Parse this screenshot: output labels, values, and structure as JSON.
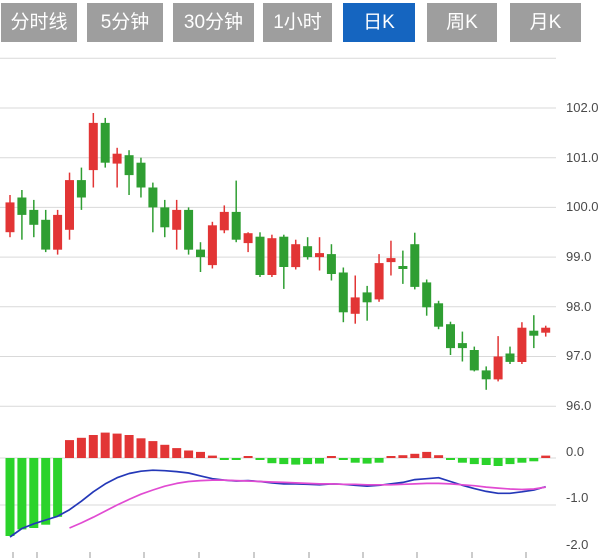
{
  "tabs": {
    "items": [
      {
        "label": "分时线",
        "active": false
      },
      {
        "label": "5分钟",
        "active": false
      },
      {
        "label": "30分钟",
        "active": false
      },
      {
        "label": "1小时",
        "active": false
      },
      {
        "label": "日K",
        "active": true
      },
      {
        "label": "周K",
        "active": false
      },
      {
        "label": "月K",
        "active": false
      }
    ]
  },
  "colors": {
    "tab_bg": "#9e9e9e",
    "tab_active_bg": "#1565c0",
    "tab_text": "#ffffff",
    "candle_up": "#e23535",
    "candle_down": "#2f9e32",
    "macd_bar_up": "#e23535",
    "macd_bar_down": "#2bd32b",
    "dif_line": "#2438b8",
    "dea_line": "#e14bd2",
    "gridline": "#d9d9d9",
    "axis_text": "#4a4a4a",
    "tick": "#999999"
  },
  "chart_data": {
    "type": "candlestick",
    "title": "日K (daily K-line) with MACD sub-chart",
    "legend_position": "none",
    "grid": "horizontal-only",
    "price_axis": {
      "labels": [
        "102.0",
        "101.0",
        "100.0",
        "99.0",
        "98.0",
        "97.0",
        "96.0"
      ],
      "values": [
        102.0,
        101.0,
        100.0,
        99.0,
        98.0,
        97.0,
        96.0
      ],
      "range_shown": [
        96.0,
        103.0
      ]
    },
    "candles_ohlc": [
      [
        99.5,
        100.25,
        99.4,
        100.1
      ],
      [
        100.2,
        100.35,
        99.35,
        99.85
      ],
      [
        99.95,
        100.15,
        99.4,
        99.65
      ],
      [
        99.75,
        99.95,
        99.1,
        99.15
      ],
      [
        99.15,
        99.95,
        99.05,
        99.85
      ],
      [
        99.55,
        100.7,
        99.35,
        100.55
      ],
      [
        100.55,
        100.8,
        99.95,
        100.2
      ],
      [
        100.75,
        101.9,
        100.4,
        101.7
      ],
      [
        101.7,
        101.8,
        100.8,
        100.9
      ],
      [
        100.88,
        101.2,
        100.4,
        101.08
      ],
      [
        101.05,
        101.15,
        100.25,
        100.65
      ],
      [
        100.9,
        101.0,
        100.2,
        100.4
      ],
      [
        100.4,
        100.5,
        99.5,
        100.0
      ],
      [
        100.0,
        100.15,
        99.4,
        99.6
      ],
      [
        99.55,
        100.15,
        99.15,
        99.95
      ],
      [
        99.95,
        100.0,
        99.05,
        99.15
      ],
      [
        99.15,
        99.3,
        98.7,
        99.0
      ],
      [
        98.84,
        99.71,
        98.77,
        99.64
      ],
      [
        99.54,
        100.04,
        99.48,
        99.91
      ],
      [
        99.91,
        100.54,
        99.3,
        99.35
      ],
      [
        99.28,
        99.5,
        99.1,
        99.48
      ],
      [
        99.41,
        99.5,
        98.6,
        98.64
      ],
      [
        98.64,
        99.45,
        98.6,
        99.38
      ],
      [
        99.41,
        99.45,
        98.36,
        98.8
      ],
      [
        98.8,
        99.35,
        98.75,
        99.26
      ],
      [
        99.22,
        99.4,
        98.95,
        99.0
      ],
      [
        99.0,
        99.4,
        98.73,
        99.08
      ],
      [
        99.06,
        99.26,
        98.53,
        98.66
      ],
      [
        98.69,
        98.79,
        97.69,
        97.89
      ],
      [
        97.86,
        98.63,
        97.66,
        98.19
      ],
      [
        98.29,
        98.42,
        97.72,
        98.09
      ],
      [
        98.15,
        99.06,
        98.1,
        98.88
      ],
      [
        98.9,
        99.33,
        98.63,
        98.98
      ],
      [
        98.82,
        99.13,
        98.46,
        98.76
      ],
      [
        99.26,
        99.49,
        98.35,
        98.4
      ],
      [
        98.49,
        98.55,
        97.82,
        97.99
      ],
      [
        98.07,
        98.12,
        97.55,
        97.6
      ],
      [
        97.65,
        97.7,
        97.03,
        97.17
      ],
      [
        97.27,
        97.5,
        96.9,
        97.17
      ],
      [
        97.13,
        97.2,
        96.7,
        96.72
      ],
      [
        96.72,
        96.8,
        96.33,
        96.54
      ],
      [
        96.54,
        97.41,
        96.5,
        97.0
      ],
      [
        97.06,
        97.2,
        96.85,
        96.89
      ],
      [
        96.89,
        97.69,
        96.85,
        97.58
      ],
      [
        97.52,
        97.83,
        97.17,
        97.42
      ],
      [
        97.48,
        97.62,
        97.4,
        97.58
      ]
    ],
    "macd": {
      "axis_labels": [
        "0.0",
        "-1.0",
        "-2.0"
      ],
      "axis_values": [
        0.0,
        -1.0,
        -2.0
      ],
      "histogram": [
        -1.66,
        -1.52,
        -1.49,
        -1.42,
        -1.25,
        0.38,
        0.43,
        0.49,
        0.54,
        0.52,
        0.49,
        0.42,
        0.36,
        0.28,
        0.21,
        0.16,
        0.13,
        0.05,
        -0.03,
        -0.04,
        0.03,
        -0.02,
        -0.11,
        -0.13,
        -0.14,
        -0.13,
        -0.12,
        0.04,
        -0.02,
        -0.1,
        -0.12,
        -0.1,
        0.03,
        0.06,
        0.09,
        0.13,
        0.06,
        -0.04,
        -0.1,
        -0.13,
        -0.15,
        -0.17,
        -0.13,
        -0.1,
        -0.07,
        0.05
      ],
      "dif": [
        -1.68,
        -1.5,
        -1.4,
        -1.32,
        -1.24,
        -1.1,
        -0.92,
        -0.72,
        -0.55,
        -0.42,
        -0.33,
        -0.28,
        -0.26,
        -0.27,
        -0.29,
        -0.32,
        -0.38,
        -0.44,
        -0.47,
        -0.49,
        -0.48,
        -0.5,
        -0.53,
        -0.55,
        -0.55,
        -0.56,
        -0.57,
        -0.55,
        -0.56,
        -0.58,
        -0.6,
        -0.58,
        -0.55,
        -0.52,
        -0.46,
        -0.44,
        -0.42,
        -0.5,
        -0.58,
        -0.65,
        -0.71,
        -0.75,
        -0.75,
        -0.72,
        -0.68,
        -0.61
      ],
      "dea": [
        null,
        null,
        null,
        null,
        null,
        -1.49,
        -1.38,
        -1.26,
        -1.13,
        -1.0,
        -0.88,
        -0.77,
        -0.68,
        -0.6,
        -0.54,
        -0.5,
        -0.48,
        -0.47,
        -0.47,
        -0.48,
        -0.49,
        -0.5,
        -0.51,
        -0.52,
        -0.53,
        -0.54,
        -0.55,
        -0.55,
        -0.56,
        -0.56,
        -0.57,
        -0.57,
        -0.57,
        -0.56,
        -0.55,
        -0.54,
        -0.54,
        -0.55,
        -0.57,
        -0.59,
        -0.62,
        -0.64,
        -0.66,
        -0.67,
        -0.66,
        -0.62
      ]
    }
  }
}
